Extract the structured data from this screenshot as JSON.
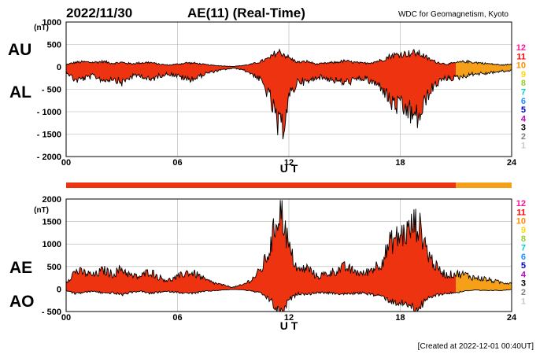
{
  "header": {
    "date": "2022/11/30",
    "title": "AE(11) (Real-Time)",
    "source": "WDC for Geomagnetism, Kyoto"
  },
  "footer": {
    "created": "[Created at 2022-12-01 00:40UT]"
  },
  "colors": {
    "fill_primary": "#ee3311",
    "fill_secondary": "#f5a018",
    "outline": "#000000",
    "grid": "#b0b0b0"
  },
  "station_legend": [
    {
      "label": "12",
      "color": "#ff1493"
    },
    {
      "label": "11",
      "color": "#ff0000"
    },
    {
      "label": "10",
      "color": "#ff8c00"
    },
    {
      "label": "9",
      "color": "#ffd700"
    },
    {
      "label": "8",
      "color": "#9acd32"
    },
    {
      "label": "7",
      "color": "#00ced1"
    },
    {
      "label": "6",
      "color": "#1e90ff"
    },
    {
      "label": "5",
      "color": "#0000cd"
    },
    {
      "label": "4",
      "color": "#c000c0"
    },
    {
      "label": "3",
      "color": "#000000"
    },
    {
      "label": "2",
      "color": "#808080"
    },
    {
      "label": "1",
      "color": "#c8c8c8"
    }
  ],
  "chart_data": [
    {
      "type": "area",
      "panel": "AU/AL",
      "ylabel_top": "AU",
      "ylabel_bottom": "AL",
      "unit": "(nT)",
      "xlabel": "U T",
      "xlim": [
        0,
        24
      ],
      "ylim": [
        -2000,
        1000
      ],
      "xticks": [
        "00",
        "06",
        "12",
        "18",
        "24"
      ],
      "yticks": [
        "1000",
        "500",
        "0",
        "- 500",
        "- 1000",
        "- 1500",
        "- 2000"
      ],
      "x": [
        0,
        0.5,
        1,
        1.5,
        2,
        2.5,
        3,
        3.5,
        4,
        4.5,
        5,
        5.5,
        6,
        6.5,
        7,
        7.5,
        8,
        8.5,
        9,
        9.5,
        10,
        10.5,
        11,
        11.25,
        11.5,
        11.75,
        12,
        12.5,
        13,
        13.5,
        14,
        14.5,
        15,
        15.5,
        16,
        16.5,
        17,
        17.5,
        18,
        18.5,
        18.75,
        19,
        19.25,
        19.5,
        20,
        20.5,
        21,
        21.5,
        22,
        22.5,
        23,
        23.5,
        24
      ],
      "series": [
        {
          "values": [
            50,
            100,
            110,
            100,
            120,
            80,
            100,
            70,
            90,
            100,
            60,
            40,
            60,
            90,
            80,
            50,
            30,
            20,
            10,
            30,
            60,
            120,
            200,
            300,
            330,
            280,
            200,
            100,
            120,
            60,
            80,
            100,
            130,
            100,
            80,
            100,
            150,
            250,
            280,
            300,
            310,
            300,
            250,
            180,
            100,
            60,
            90,
            120,
            100,
            80,
            60,
            40,
            60
          ]
        },
        {
          "values": [
            -100,
            -300,
            -250,
            -200,
            -300,
            -250,
            -350,
            -220,
            -180,
            -300,
            -200,
            -150,
            -200,
            -280,
            -250,
            -150,
            -100,
            -60,
            -30,
            -60,
            -150,
            -300,
            -700,
            -1100,
            -1450,
            -1200,
            -700,
            -300,
            -350,
            -220,
            -250,
            -300,
            -350,
            -300,
            -250,
            -350,
            -450,
            -800,
            -900,
            -1000,
            -1150,
            -1100,
            -900,
            -600,
            -350,
            -250,
            -250,
            -200,
            -150,
            -150,
            -120,
            -100,
            -80
          ]
        }
      ]
    },
    {
      "type": "area",
      "panel": "AE/AO",
      "ylabel_top": "AE",
      "ylabel_bottom": "AO",
      "unit": "(nT)",
      "xlabel": "U T",
      "xlim": [
        0,
        24
      ],
      "ylim": [
        -500,
        2000
      ],
      "xticks": [
        "00",
        "06",
        "12",
        "18",
        "24"
      ],
      "yticks": [
        "2000",
        "1500",
        "1000",
        "500",
        "0",
        "- 500"
      ],
      "x": [
        0,
        0.5,
        1,
        1.5,
        2,
        2.5,
        3,
        3.5,
        4,
        4.5,
        5,
        5.5,
        6,
        6.5,
        7,
        7.5,
        8,
        8.5,
        9,
        9.5,
        10,
        10.5,
        11,
        11.25,
        11.5,
        11.75,
        12,
        12.5,
        13,
        13.5,
        14,
        14.5,
        15,
        15.5,
        16,
        16.5,
        17,
        17.5,
        18,
        18.5,
        18.75,
        19,
        19.25,
        19.5,
        20,
        20.5,
        21,
        21.5,
        22,
        22.5,
        23,
        23.5,
        24
      ],
      "series": [
        {
          "values": [
            150,
            400,
            360,
            300,
            420,
            330,
            450,
            290,
            270,
            400,
            260,
            190,
            260,
            370,
            330,
            200,
            130,
            80,
            40,
            90,
            210,
            420,
            900,
            1400,
            1780,
            1480,
            900,
            400,
            470,
            280,
            330,
            400,
            480,
            400,
            330,
            450,
            600,
            1050,
            1180,
            1300,
            1460,
            1400,
            1150,
            780,
            450,
            310,
            340,
            320,
            250,
            230,
            180,
            140,
            140
          ]
        },
        {
          "values": [
            -30,
            -100,
            -70,
            -50,
            -90,
            -85,
            -125,
            -75,
            -45,
            -100,
            -70,
            -55,
            -70,
            -95,
            -85,
            -50,
            -35,
            -20,
            -10,
            -15,
            -45,
            -90,
            -250,
            -400,
            -560,
            -460,
            -250,
            -100,
            -115,
            -80,
            -85,
            -100,
            -110,
            -100,
            -85,
            -125,
            -150,
            -275,
            -310,
            -350,
            -420,
            -400,
            -325,
            -210,
            -125,
            -95,
            -80,
            -40,
            -25,
            -35,
            -30,
            -30,
            -10
          ]
        }
      ]
    }
  ]
}
